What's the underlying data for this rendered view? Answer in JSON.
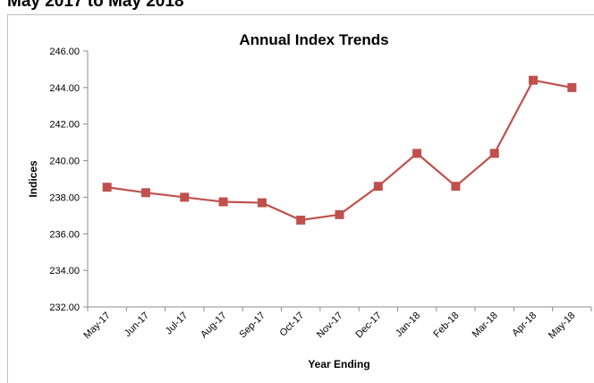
{
  "heading": "May 2017 to May 2018",
  "chart_data": {
    "type": "line",
    "title": "Annual Index Trends",
    "xlabel": "Year Ending",
    "ylabel": "Indices",
    "ylim": [
      232,
      246
    ],
    "ytick_step": 2,
    "ytick_decimals": 2,
    "grid": false,
    "legend": "none",
    "categories": [
      "May-17",
      "Jun-17",
      "Jul-17",
      "Aug-17",
      "Sep-17",
      "Oct-17",
      "Nov-17",
      "Dec-17",
      "Jan-18",
      "Feb-18",
      "Mar-18",
      "Apr-18",
      "May-18"
    ],
    "series": [
      {
        "color": "#c0504d",
        "marker": "square",
        "values": [
          238.55,
          238.25,
          238.0,
          237.75,
          237.7,
          236.75,
          237.05,
          238.6,
          240.4,
          238.6,
          240.4,
          244.4,
          244.0
        ]
      }
    ]
  }
}
